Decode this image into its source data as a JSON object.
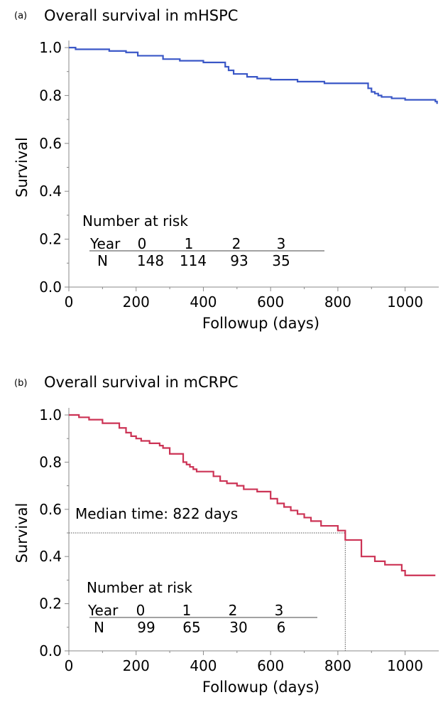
{
  "chart_data": [
    {
      "type": "line",
      "panel_letter": "(a)",
      "title": "Overall survival in mHSPC",
      "xlabel": "Followup (days)",
      "ylabel": "Survival",
      "xlim": [
        0,
        1100
      ],
      "ylim": [
        0,
        1.05
      ],
      "xticks": [
        0,
        200,
        400,
        600,
        800,
        1000
      ],
      "yticks": [
        0.0,
        0.2,
        0.4,
        0.6,
        0.8,
        1.0
      ],
      "xtick_labels": [
        "0",
        "200",
        "400",
        "600",
        "800",
        "1000"
      ],
      "ytick_labels": [
        "0.0",
        "0.2",
        "0.4",
        "0.6",
        "0.8",
        "1.0"
      ],
      "color": "#3a57c7",
      "series": [
        {
          "x": [
            0,
            20,
            120,
            170,
            205,
            280,
            330,
            400,
            465,
            475,
            490,
            530,
            560,
            600,
            680,
            760,
            890,
            900,
            910,
            920,
            930,
            960,
            1000,
            1090,
            1095
          ],
          "y": [
            1.0,
            0.993,
            0.986,
            0.98,
            0.966,
            0.952,
            0.945,
            0.938,
            0.92,
            0.905,
            0.89,
            0.878,
            0.871,
            0.866,
            0.858,
            0.851,
            0.83,
            0.815,
            0.808,
            0.8,
            0.794,
            0.788,
            0.782,
            0.775,
            0.765
          ]
        }
      ],
      "risk_table": {
        "heading": "Number at risk",
        "year_label": "Year",
        "years": [
          "0",
          "1",
          "2",
          "3"
        ],
        "n_label": "N",
        "counts": [
          "148",
          "114",
          "93",
          "35"
        ]
      }
    },
    {
      "type": "line",
      "panel_letter": "(b)",
      "title": "Overall survival in mCRPC",
      "xlabel": "Followup (days)",
      "ylabel": "Survival",
      "xlim": [
        0,
        1100
      ],
      "ylim": [
        0,
        1.05
      ],
      "xticks": [
        0,
        200,
        400,
        600,
        800,
        1000
      ],
      "yticks": [
        0.0,
        0.2,
        0.4,
        0.6,
        0.8,
        1.0
      ],
      "xtick_labels": [
        "0",
        "200",
        "400",
        "600",
        "800",
        "1000"
      ],
      "ytick_labels": [
        "0.0",
        "0.2",
        "0.4",
        "0.6",
        "0.8",
        "1.0"
      ],
      "color": "#cc3355",
      "series": [
        {
          "x": [
            0,
            30,
            60,
            100,
            150,
            170,
            185,
            200,
            215,
            240,
            270,
            280,
            300,
            340,
            350,
            360,
            370,
            380,
            430,
            450,
            470,
            500,
            520,
            560,
            600,
            620,
            640,
            660,
            680,
            700,
            720,
            750,
            800,
            822,
            870,
            910,
            940,
            990,
            1000,
            1090
          ],
          "y": [
            1.0,
            0.99,
            0.98,
            0.965,
            0.945,
            0.925,
            0.91,
            0.9,
            0.89,
            0.88,
            0.87,
            0.86,
            0.835,
            0.8,
            0.79,
            0.78,
            0.77,
            0.76,
            0.74,
            0.72,
            0.71,
            0.7,
            0.685,
            0.675,
            0.645,
            0.625,
            0.61,
            0.595,
            0.58,
            0.565,
            0.55,
            0.53,
            0.51,
            0.47,
            0.4,
            0.38,
            0.365,
            0.34,
            0.32,
            0.32
          ]
        }
      ],
      "median": {
        "label": "Median time: 822 days",
        "x": 822,
        "y": 0.5
      },
      "risk_table": {
        "heading": "Number at risk",
        "year_label": "Year",
        "years": [
          "0",
          "1",
          "2",
          "3"
        ],
        "n_label": "N",
        "counts": [
          "99",
          "65",
          "30",
          "6"
        ]
      }
    }
  ]
}
